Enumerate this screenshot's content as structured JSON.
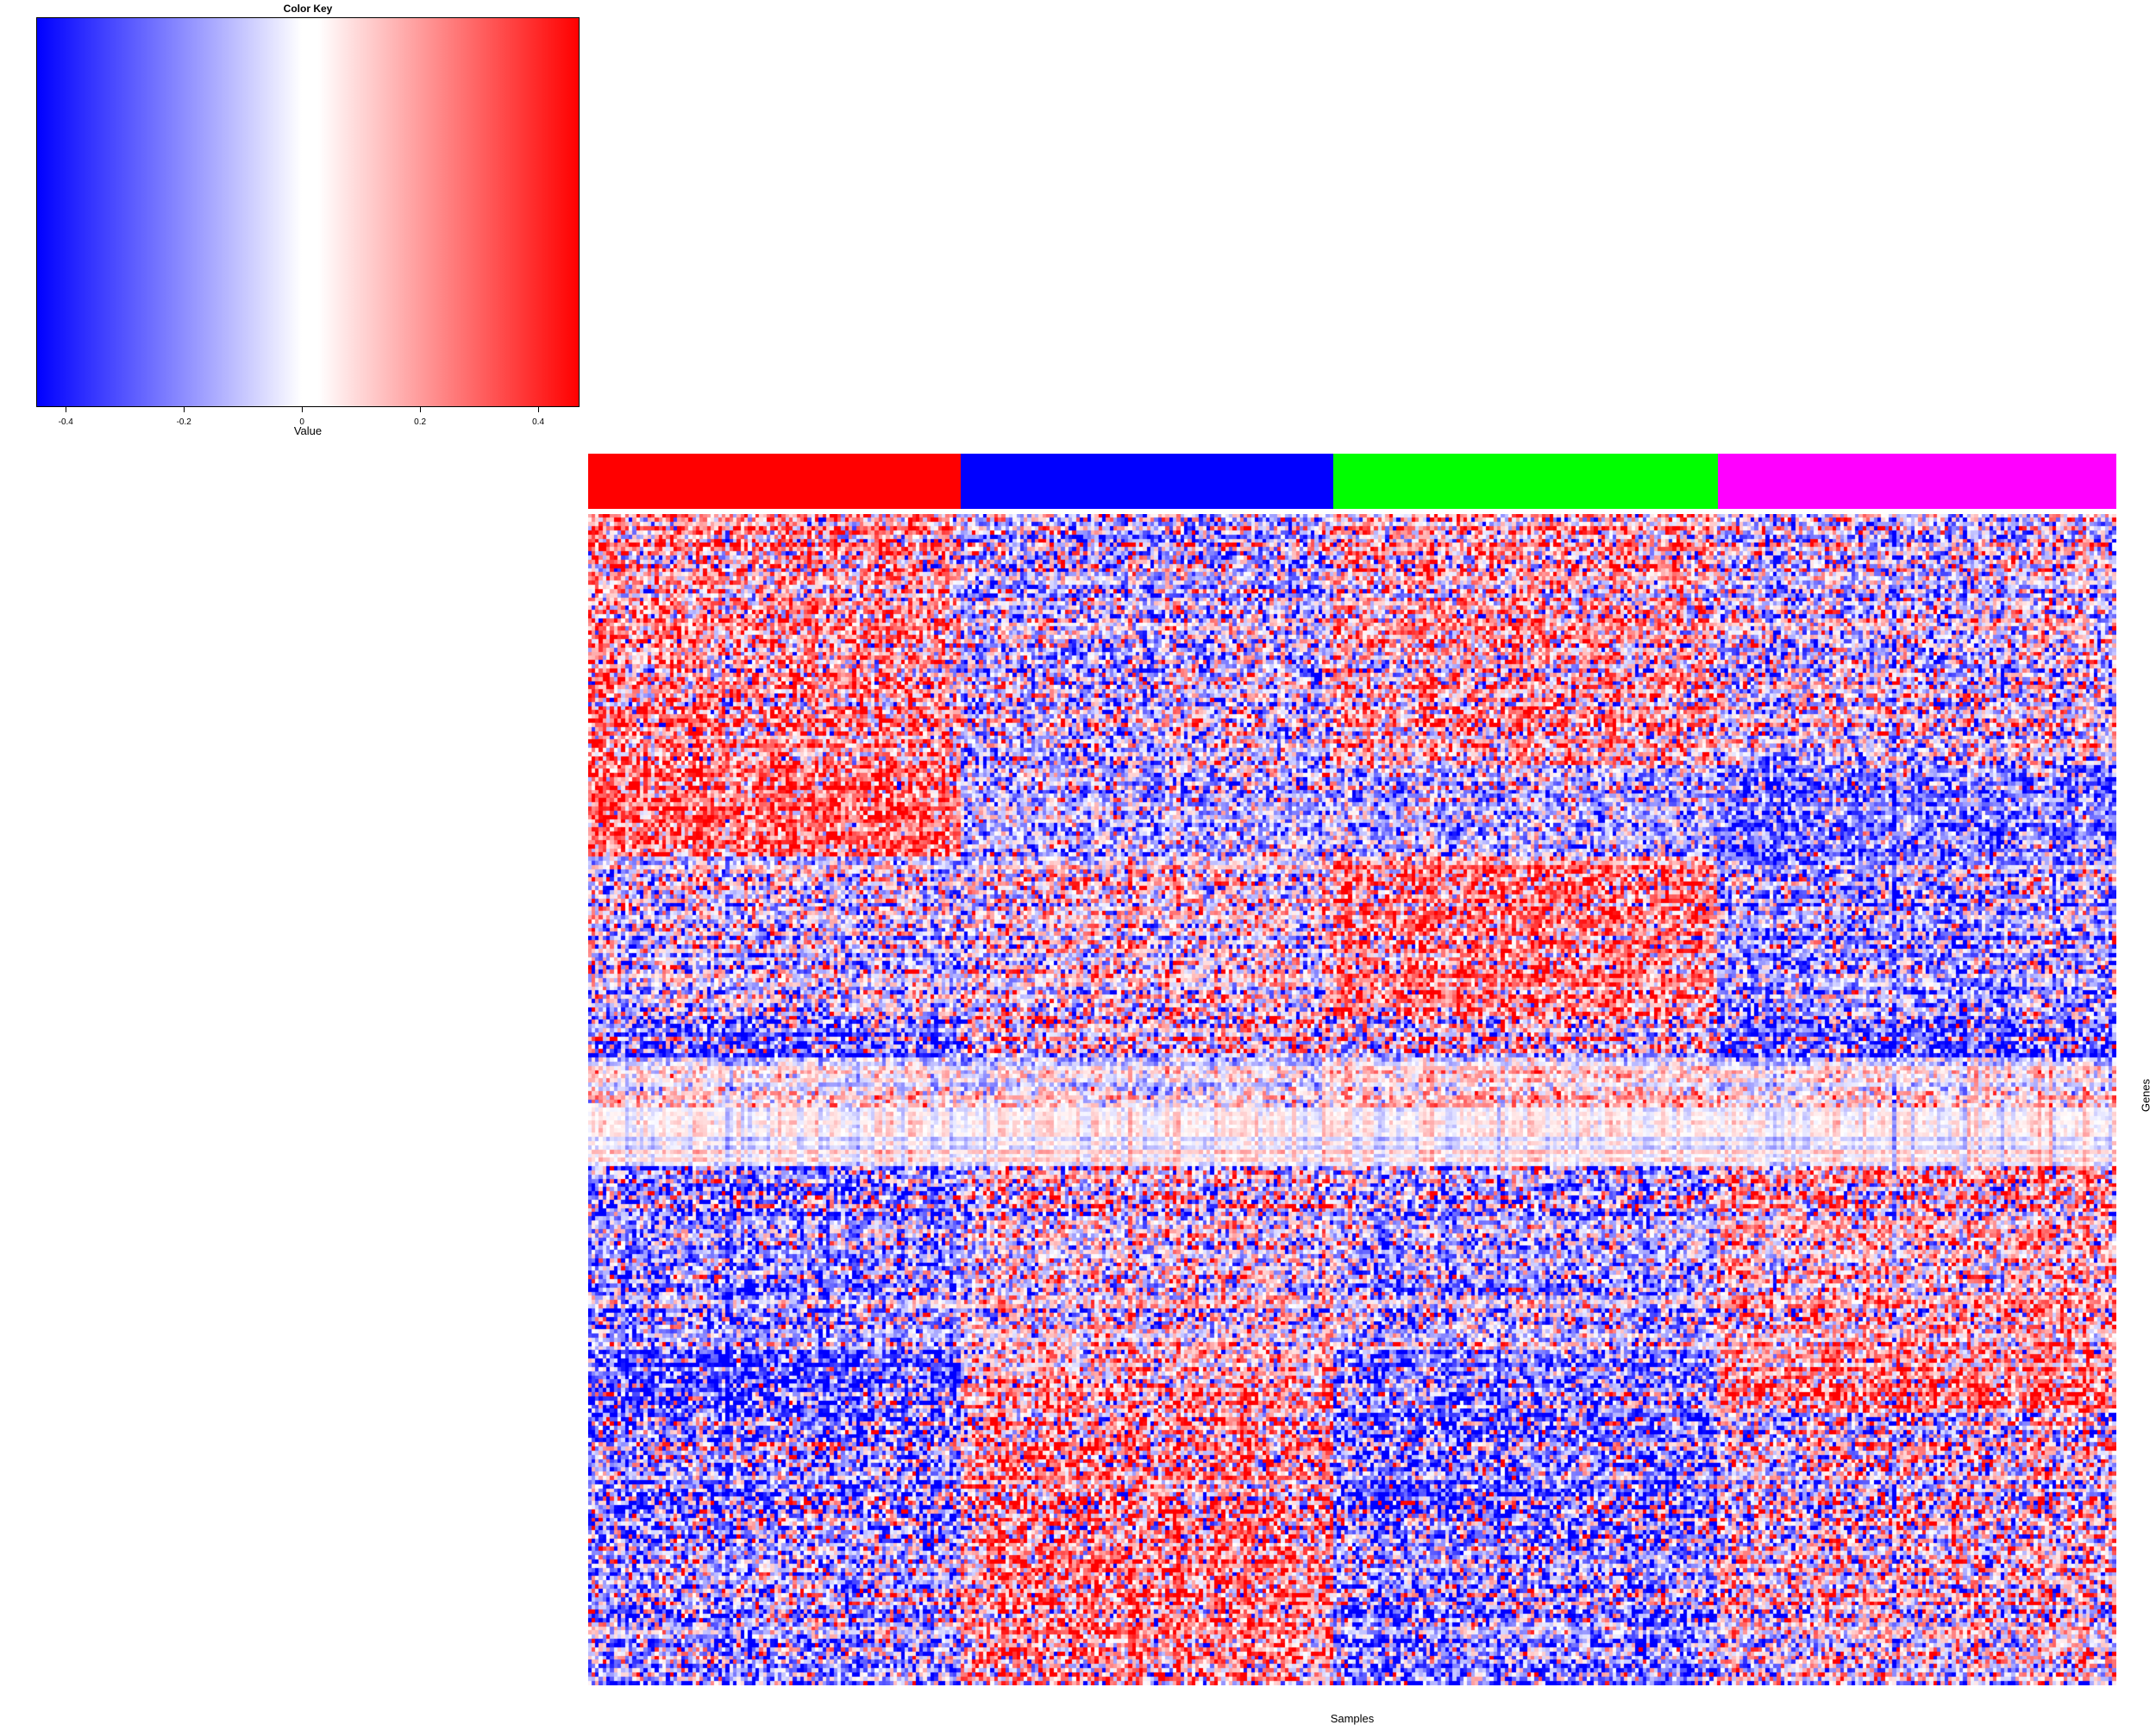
{
  "chart_data": {
    "type": "heatmap",
    "title": "",
    "xlabel": "Samples",
    "ylabel": "Genes",
    "color_key": {
      "title": "Color Key",
      "xlabel": "Value",
      "range": [
        -0.45,
        0.47
      ],
      "ticks": [
        -0.4,
        -0.2,
        0,
        0.2,
        0.4
      ],
      "tick_labels": [
        "-0.4",
        "-0.2",
        "0",
        "0.2",
        "0.4"
      ],
      "low_color": "#0000ff",
      "mid_color": "#ffffff",
      "high_color": "#ff0000"
    },
    "column_groups": [
      {
        "color": "#ff0000",
        "n_columns": 100
      },
      {
        "color": "#0000ff",
        "n_columns": 100
      },
      {
        "color": "#00ff00",
        "n_columns": 103
      },
      {
        "color": "#ff00ff",
        "n_columns": 107
      }
    ],
    "n_rows": 280,
    "row_block_pattern": [
      {
        "rows": [
          0,
          60
        ],
        "group_means": [
          0.15,
          -0.1,
          0.1,
          -0.05
        ],
        "variance": 0.25
      },
      {
        "rows": [
          60,
          82
        ],
        "group_means": [
          0.25,
          -0.15,
          -0.15,
          -0.25
        ],
        "variance": 0.22
      },
      {
        "rows": [
          82,
          120
        ],
        "group_means": [
          -0.05,
          0.0,
          0.2,
          -0.15
        ],
        "variance": 0.25
      },
      {
        "rows": [
          120,
          130
        ],
        "group_means": [
          -0.2,
          0.05,
          0.05,
          -0.2
        ],
        "variance": 0.3
      },
      {
        "rows": [
          130,
          142
        ],
        "group_means": [
          0.0,
          -0.05,
          0.05,
          0.0
        ],
        "variance": 0.12
      },
      {
        "rows": [
          142,
          156
        ],
        "group_means": [
          0.0,
          0.0,
          0.0,
          0.0
        ],
        "variance": 0.03
      },
      {
        "rows": [
          156,
          200
        ],
        "group_means": [
          -0.15,
          0.0,
          -0.1,
          0.1
        ],
        "variance": 0.25
      },
      {
        "rows": [
          200,
          215
        ],
        "group_means": [
          -0.3,
          0.1,
          -0.2,
          0.2
        ],
        "variance": 0.25
      },
      {
        "rows": [
          215,
          280
        ],
        "group_means": [
          -0.15,
          0.15,
          -0.2,
          0.0
        ],
        "variance": 0.28
      }
    ]
  }
}
